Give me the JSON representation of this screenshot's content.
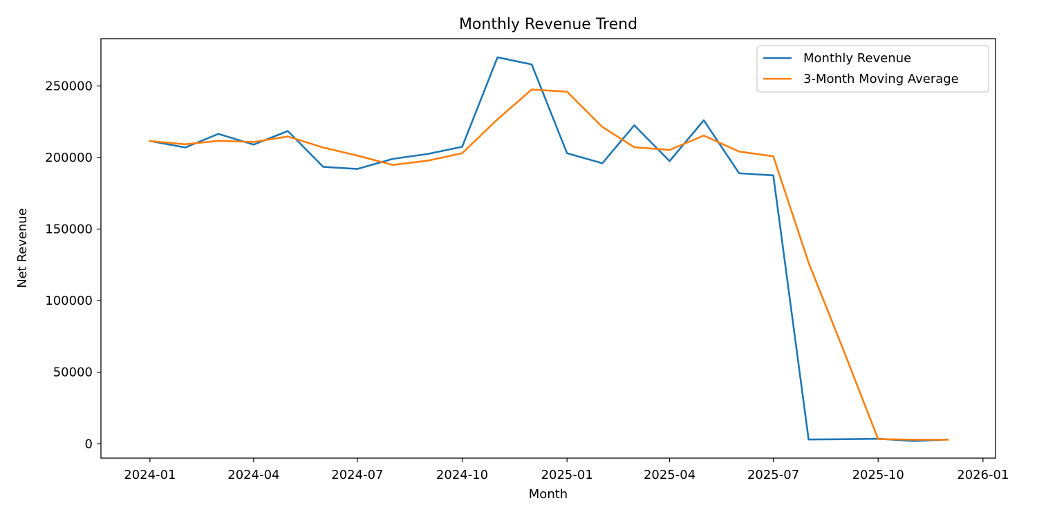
{
  "chart_data": {
    "type": "line",
    "title": "Monthly Revenue Trend",
    "xlabel": "Month",
    "ylabel": "Net Revenue",
    "x": [
      "2024-01",
      "2024-02",
      "2024-03",
      "2024-04",
      "2024-05",
      "2024-06",
      "2024-07",
      "2024-08",
      "2024-09",
      "2024-10",
      "2024-11",
      "2024-12",
      "2025-01",
      "2025-02",
      "2025-03",
      "2025-04",
      "2025-05",
      "2025-06",
      "2025-07",
      "2025-08",
      "2025-09",
      "2025-10",
      "2025-11",
      "2025-12"
    ],
    "series": [
      {
        "name": "Monthly Revenue",
        "color": "#1f77b4",
        "values": [
          211500,
          207000,
          216500,
          209000,
          218500,
          193500,
          192000,
          199000,
          202500,
          207500,
          270000,
          265000,
          203000,
          196000,
          222500,
          197500,
          226000,
          189000,
          187500,
          3000,
          3200,
          3500,
          2000,
          3000
        ]
      },
      {
        "name": "3-Month Moving Average",
        "color": "#ff7f0e",
        "values": [
          211500,
          209250,
          211667,
          210833,
          214667,
          207000,
          201333,
          194833,
          197833,
          203000,
          226667,
          247500,
          246000,
          221333,
          207167,
          205333,
          215333,
          204167,
          200833,
          126500,
          64567,
          3233,
          2900,
          2833
        ]
      }
    ],
    "xlim": [
      "2023-11-19",
      "2026-01-12"
    ],
    "ylim": [
      -10000,
      283000
    ],
    "x_ticks": [
      "2024-01",
      "2024-04",
      "2024-07",
      "2024-10",
      "2025-01",
      "2025-04",
      "2025-07",
      "2025-10",
      "2026-01"
    ],
    "y_ticks": [
      0,
      50000,
      100000,
      150000,
      200000,
      250000
    ],
    "grid": false,
    "legend_position": "top-right"
  }
}
